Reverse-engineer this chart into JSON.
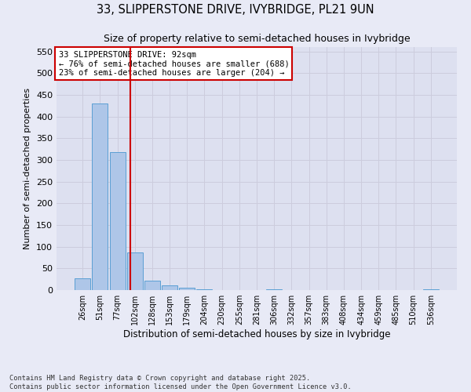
{
  "title": "33, SLIPPERSTONE DRIVE, IVYBRIDGE, PL21 9UN",
  "subtitle": "Size of property relative to semi-detached houses in Ivybridge",
  "xlabel": "Distribution of semi-detached houses by size in Ivybridge",
  "ylabel": "Number of semi-detached properties",
  "categories": [
    "26sqm",
    "51sqm",
    "77sqm",
    "102sqm",
    "128sqm",
    "153sqm",
    "179sqm",
    "204sqm",
    "230sqm",
    "255sqm",
    "281sqm",
    "306sqm",
    "332sqm",
    "357sqm",
    "383sqm",
    "408sqm",
    "434sqm",
    "459sqm",
    "485sqm",
    "510sqm",
    "536sqm"
  ],
  "values": [
    27,
    430,
    318,
    86,
    22,
    10,
    5,
    2,
    0,
    0,
    0,
    2,
    0,
    0,
    0,
    0,
    0,
    0,
    0,
    0,
    2
  ],
  "bar_color": "#aec6e8",
  "bar_edge_color": "#5a9fd4",
  "grid_color": "#ccccdd",
  "background_color": "#dde0f0",
  "fig_background_color": "#e8eaf6",
  "vline_x": 2.75,
  "vline_color": "#cc0000",
  "annotation_text": "33 SLIPPERSTONE DRIVE: 92sqm\n← 76% of semi-detached houses are smaller (688)\n23% of semi-detached houses are larger (204) →",
  "annotation_box_color": "#ffffff",
  "annotation_box_edge_color": "#cc0000",
  "footer": "Contains HM Land Registry data © Crown copyright and database right 2025.\nContains public sector information licensed under the Open Government Licence v3.0.",
  "ylim": [
    0,
    560
  ],
  "yticks": [
    0,
    50,
    100,
    150,
    200,
    250,
    300,
    350,
    400,
    450,
    500,
    550
  ]
}
